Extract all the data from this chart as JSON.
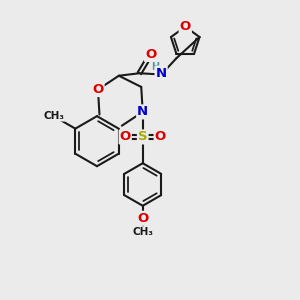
{
  "bg_color": "#ebebeb",
  "bond_color": "#1a1a1a",
  "bond_width": 1.5,
  "atom_colors": {
    "O": "#dd0000",
    "N": "#0000cc",
    "S": "#aaaa00",
    "H": "#4d9999",
    "C": "#1a1a1a"
  },
  "font_size": 8.5,
  "dbl_off": 0.055
}
